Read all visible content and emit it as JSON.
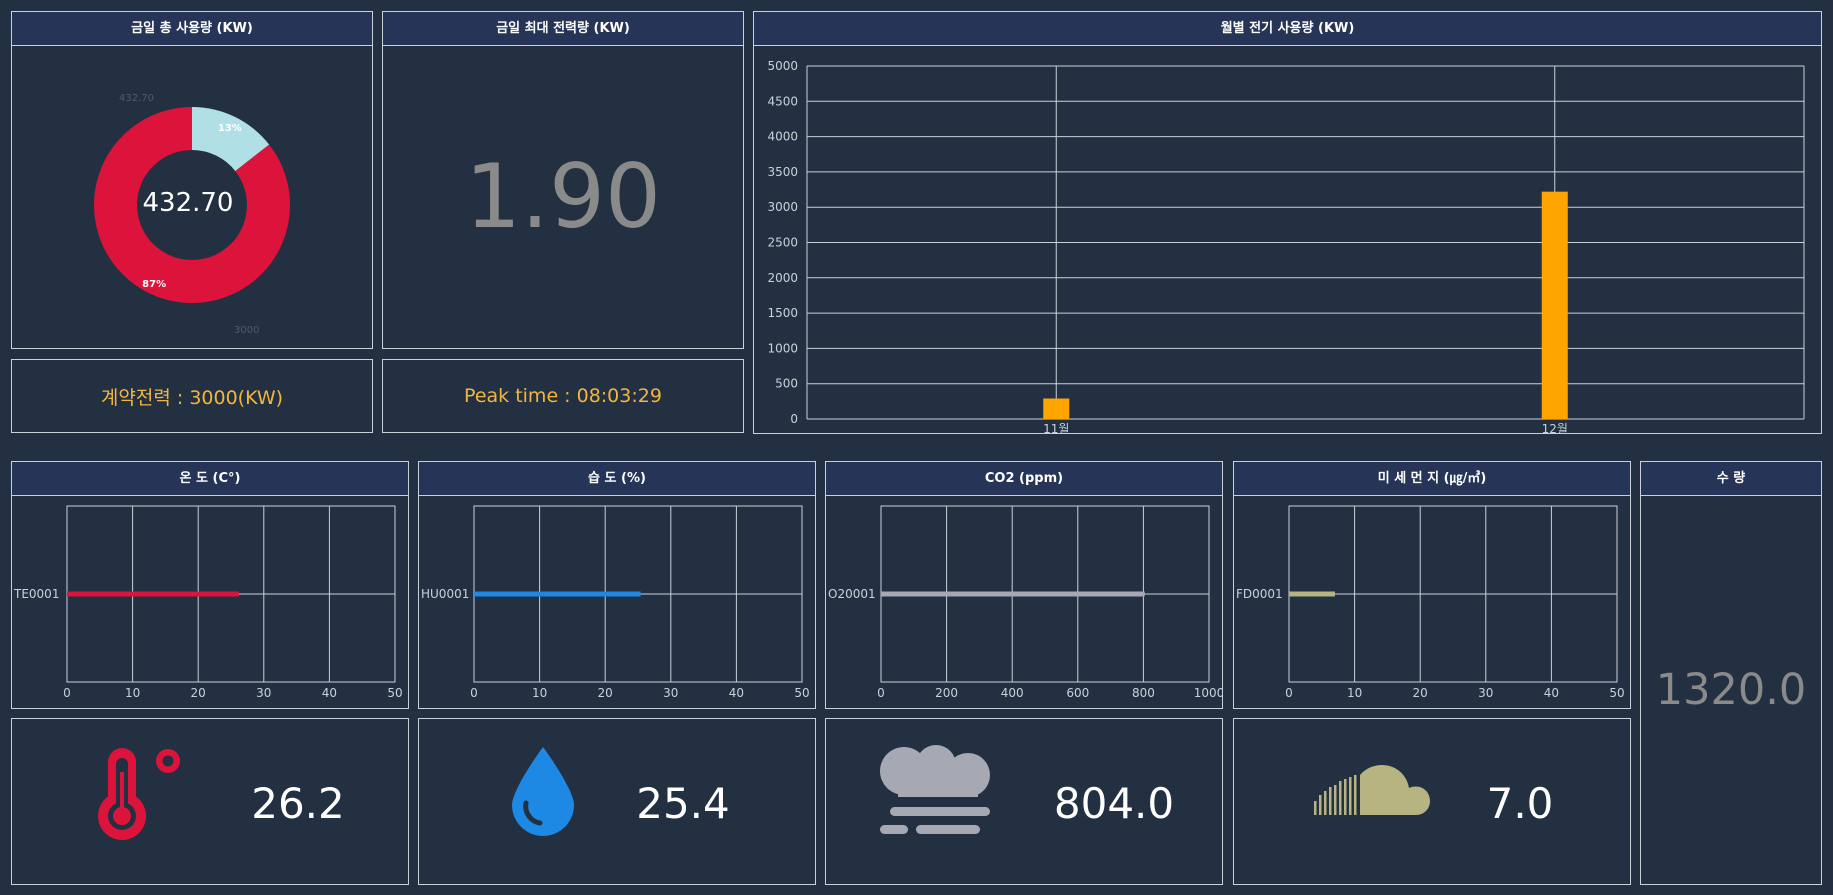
{
  "panels": {
    "total_usage": {
      "title": "금일 총 사용량 (KW)",
      "center_value": "432.70",
      "outer_label_used": "432.70",
      "outer_label_contract": "3000"
    },
    "max_power": {
      "title": "금일 최대 전력량 (KW)",
      "value": "1.90"
    },
    "monthly": {
      "title": "월별 전기 사용량 (KW)"
    },
    "contract": {
      "text": "계약전력 : 3000(KW)"
    },
    "peak": {
      "text": "Peak time : 08:03:29"
    },
    "temperature": {
      "title": "온 도 (C°)",
      "value": "26.2"
    },
    "humidity": {
      "title": "습 도 (%)",
      "value": "25.4"
    },
    "co2": {
      "title": "CO2 (ppm)",
      "value": "804.0"
    },
    "dust": {
      "title": "미 세 먼 지 (㎍/㎥)",
      "value": "7.0"
    },
    "water": {
      "title": "수 량",
      "value": "1320.0"
    }
  },
  "chart_data": [
    {
      "id": "donut",
      "type": "pie",
      "slices": [
        {
          "label": "13%",
          "value": 432.7,
          "color": "#b0e0e6"
        },
        {
          "label": "87%",
          "value": 2567.3,
          "color": "#dc143c"
        }
      ]
    },
    {
      "id": "monthly",
      "type": "bar",
      "categories": [
        "11월",
        "12월"
      ],
      "values": [
        290,
        3220
      ],
      "ylim": [
        0,
        5000
      ],
      "yticks": [
        0,
        500,
        1000,
        1500,
        2000,
        2500,
        3000,
        3500,
        4000,
        4500,
        5000
      ],
      "color": "#ffa500"
    },
    {
      "id": "temp",
      "type": "bar",
      "orientation": "horizontal",
      "category": "TE0001",
      "value": 26.2,
      "xlim": [
        0,
        50
      ],
      "xticks": [
        0,
        10,
        20,
        30,
        40,
        50
      ],
      "color": "#dc143c"
    },
    {
      "id": "hum",
      "type": "bar",
      "orientation": "horizontal",
      "category": "HU0001",
      "value": 25.4,
      "xlim": [
        0,
        50
      ],
      "xticks": [
        0,
        10,
        20,
        30,
        40,
        50
      ],
      "color": "#1e88e5"
    },
    {
      "id": "co2",
      "type": "bar",
      "orientation": "horizontal",
      "category": "O20001",
      "value": 804,
      "xlim": [
        0,
        1000
      ],
      "xticks": [
        0,
        200,
        400,
        600,
        800,
        1000
      ],
      "color": "#a6a9b4"
    },
    {
      "id": "dust",
      "type": "bar",
      "orientation": "horizontal",
      "category": "FD0001",
      "value": 7,
      "xlim": [
        0,
        50
      ],
      "xticks": [
        0,
        10,
        20,
        30,
        40,
        50
      ],
      "color": "#b7b482"
    }
  ],
  "icons": {
    "temperature": "thermometer-icon",
    "humidity": "water-drop-icon",
    "co2": "fog-cloud-icon",
    "dust": "soundcloud-icon"
  },
  "colors": {
    "background": "#223041",
    "header": "#263457",
    "accent_orange": "#f3b53f",
    "red": "#dc143c",
    "blue": "#1e88e5",
    "co2_gray": "#a6a9b4",
    "dust_khaki": "#b7b482"
  }
}
